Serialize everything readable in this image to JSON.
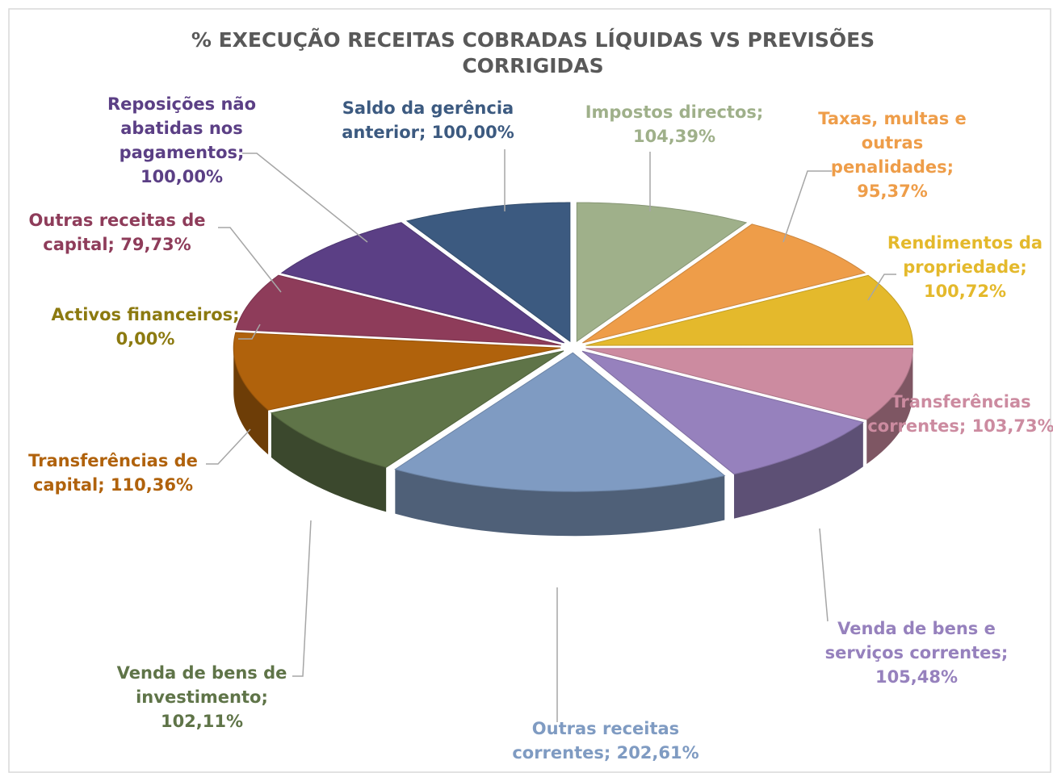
{
  "chart_data": {
    "type": "pie3d",
    "title": "% EXECUÇÃO RECEITAS COBRADAS LÍQUIDAS VS PREVISÕES CORRIGIDAS",
    "values": [
      104.39,
      95.37,
      100.72,
      103.73,
      105.48,
      202.61,
      102.11,
      110.36,
      0,
      79.73,
      100,
      100
    ],
    "value_labels": [
      "Impostos directos; 104,39%",
      "Taxas, multas e outras penalidades; 95,37%",
      "Rendimentos da propriedade; 100,72%",
      "Transferências correntes; 103,73%",
      "Venda de bens e serviços correntes; 105,48%",
      "Outras receitas correntes; 202,61%",
      "Venda de bens de investimento; 102,11%",
      "Transferências de capital; 110,36%",
      "Activos financeiros; 0,00%",
      "Outras receitas de capital; 79,73%",
      "Reposições não abatidas nos pagamentos; 100,00%",
      "Saldo da gerência anterior; 100,00%"
    ],
    "colors": [
      "#9fb08a",
      "#ee9d49",
      "#e4b92c",
      "#cc8ba0",
      "#9681bd",
      "#7f9bc2",
      "#5f7448",
      "#b0620c",
      "#8c7a10",
      "#8e3c5a",
      "#5b3f85",
      "#3c5a80"
    ]
  }
}
